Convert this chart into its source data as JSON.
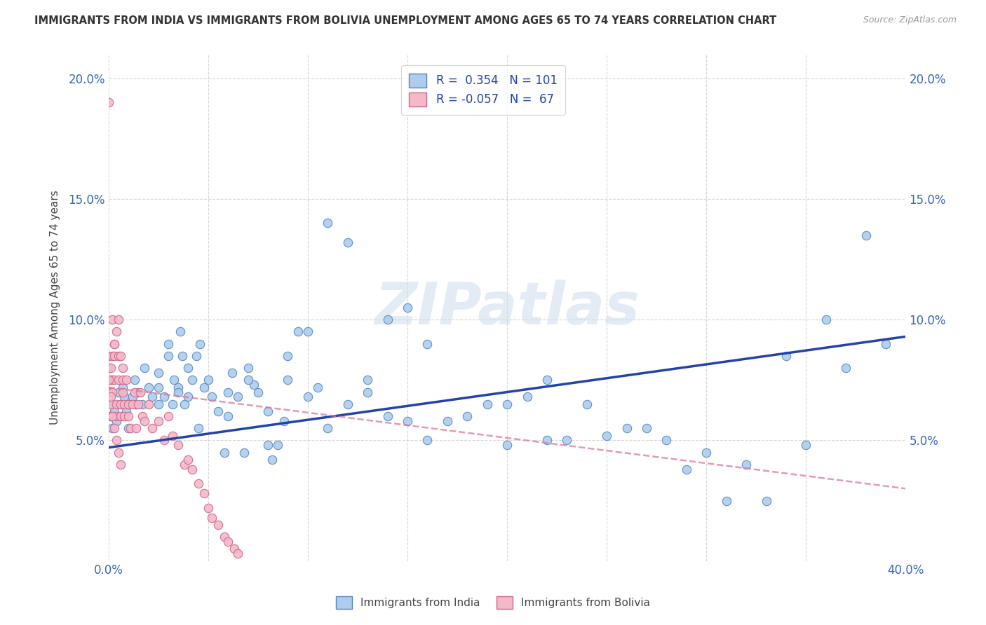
{
  "title": "IMMIGRANTS FROM INDIA VS IMMIGRANTS FROM BOLIVIA UNEMPLOYMENT AMONG AGES 65 TO 74 YEARS CORRELATION CHART",
  "source": "Source: ZipAtlas.com",
  "ylabel": "Unemployment Among Ages 65 to 74 years",
  "xlim": [
    0.0,
    0.4
  ],
  "ylim": [
    0.0,
    0.21
  ],
  "xticks": [
    0.0,
    0.05,
    0.1,
    0.15,
    0.2,
    0.25,
    0.3,
    0.35,
    0.4
  ],
  "xticklabels": [
    "0.0%",
    "",
    "",
    "",
    "",
    "",
    "",
    "",
    "40.0%"
  ],
  "yticks": [
    0.0,
    0.05,
    0.1,
    0.15,
    0.2
  ],
  "yticklabels": [
    "",
    "5.0%",
    "10.0%",
    "15.0%",
    "20.0%"
  ],
  "india_color": "#aeccee",
  "india_edge": "#5588bb",
  "bolivia_color": "#f4b8c8",
  "bolivia_edge": "#cc6688",
  "india_line_color": "#2244aa",
  "bolivia_line_color": "#dd7799",
  "india_R": 0.354,
  "india_N": 101,
  "bolivia_R": -0.057,
  "bolivia_N": 67,
  "india_trend_x": [
    0.0,
    0.4
  ],
  "india_trend_y": [
    0.047,
    0.093
  ],
  "bolivia_trend_x": [
    0.0,
    0.4
  ],
  "bolivia_trend_y": [
    0.072,
    0.03
  ],
  "watermark": "ZIPatlas",
  "india_x": [
    0.001,
    0.002,
    0.002,
    0.003,
    0.004,
    0.005,
    0.006,
    0.007,
    0.008,
    0.009,
    0.01,
    0.01,
    0.012,
    0.013,
    0.014,
    0.015,
    0.017,
    0.018,
    0.02,
    0.022,
    0.025,
    0.025,
    0.028,
    0.03,
    0.03,
    0.032,
    0.033,
    0.035,
    0.036,
    0.037,
    0.038,
    0.04,
    0.042,
    0.044,
    0.046,
    0.048,
    0.05,
    0.052,
    0.055,
    0.058,
    0.06,
    0.062,
    0.065,
    0.068,
    0.07,
    0.073,
    0.075,
    0.08,
    0.082,
    0.085,
    0.088,
    0.09,
    0.095,
    0.1,
    0.105,
    0.11,
    0.12,
    0.13,
    0.14,
    0.15,
    0.16,
    0.17,
    0.18,
    0.19,
    0.2,
    0.21,
    0.22,
    0.23,
    0.25,
    0.27,
    0.29,
    0.31,
    0.33,
    0.35,
    0.37,
    0.39,
    0.04,
    0.06,
    0.07,
    0.08,
    0.09,
    0.1,
    0.11,
    0.12,
    0.13,
    0.14,
    0.15,
    0.16,
    0.2,
    0.22,
    0.24,
    0.26,
    0.28,
    0.3,
    0.32,
    0.34,
    0.36,
    0.38,
    0.025,
    0.035,
    0.045
  ],
  "india_y": [
    0.06,
    0.065,
    0.055,
    0.062,
    0.058,
    0.07,
    0.065,
    0.072,
    0.068,
    0.062,
    0.055,
    0.065,
    0.068,
    0.075,
    0.065,
    0.07,
    0.065,
    0.08,
    0.072,
    0.068,
    0.072,
    0.065,
    0.068,
    0.085,
    0.09,
    0.065,
    0.075,
    0.072,
    0.095,
    0.085,
    0.065,
    0.068,
    0.075,
    0.085,
    0.09,
    0.072,
    0.075,
    0.068,
    0.062,
    0.045,
    0.07,
    0.078,
    0.068,
    0.045,
    0.08,
    0.073,
    0.07,
    0.048,
    0.042,
    0.048,
    0.058,
    0.075,
    0.095,
    0.095,
    0.072,
    0.14,
    0.132,
    0.075,
    0.1,
    0.105,
    0.09,
    0.058,
    0.06,
    0.065,
    0.065,
    0.068,
    0.05,
    0.05,
    0.052,
    0.055,
    0.038,
    0.025,
    0.025,
    0.048,
    0.08,
    0.09,
    0.08,
    0.06,
    0.075,
    0.062,
    0.085,
    0.068,
    0.055,
    0.065,
    0.07,
    0.06,
    0.058,
    0.05,
    0.048,
    0.075,
    0.065,
    0.055,
    0.05,
    0.045,
    0.04,
    0.085,
    0.1,
    0.135,
    0.078,
    0.07,
    0.055
  ],
  "bolivia_x": [
    0.0,
    0.0,
    0.0,
    0.0,
    0.001,
    0.001,
    0.001,
    0.001,
    0.002,
    0.002,
    0.002,
    0.003,
    0.003,
    0.003,
    0.004,
    0.004,
    0.005,
    0.005,
    0.006,
    0.006,
    0.007,
    0.007,
    0.008,
    0.008,
    0.009,
    0.01,
    0.01,
    0.011,
    0.012,
    0.013,
    0.014,
    0.015,
    0.016,
    0.017,
    0.018,
    0.02,
    0.022,
    0.025,
    0.028,
    0.03,
    0.032,
    0.035,
    0.038,
    0.04,
    0.042,
    0.045,
    0.048,
    0.05,
    0.052,
    0.055,
    0.058,
    0.06,
    0.063,
    0.065,
    0.002,
    0.003,
    0.004,
    0.005,
    0.006,
    0.007,
    0.0,
    0.001,
    0.002,
    0.003,
    0.004,
    0.005,
    0.006
  ],
  "bolivia_y": [
    0.19,
    0.08,
    0.085,
    0.07,
    0.08,
    0.075,
    0.065,
    0.06,
    0.085,
    0.075,
    0.07,
    0.09,
    0.085,
    0.075,
    0.065,
    0.06,
    0.085,
    0.075,
    0.065,
    0.06,
    0.075,
    0.07,
    0.065,
    0.06,
    0.075,
    0.065,
    0.06,
    0.055,
    0.065,
    0.07,
    0.055,
    0.065,
    0.07,
    0.06,
    0.058,
    0.065,
    0.055,
    0.058,
    0.05,
    0.06,
    0.052,
    0.048,
    0.04,
    0.042,
    0.038,
    0.032,
    0.028,
    0.022,
    0.018,
    0.015,
    0.01,
    0.008,
    0.005,
    0.003,
    0.1,
    0.09,
    0.095,
    0.1,
    0.085,
    0.08,
    0.075,
    0.068,
    0.06,
    0.055,
    0.05,
    0.045,
    0.04
  ]
}
